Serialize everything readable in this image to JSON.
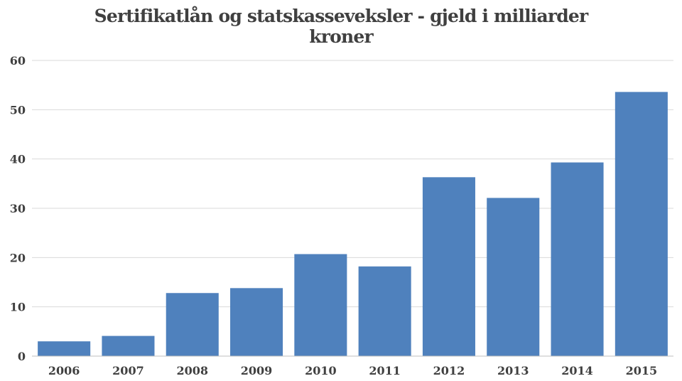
{
  "chart_data": {
    "type": "bar",
    "title_lines": [
      "Sertifikatlån og statskasseveksler - gjeld i milliarder",
      "kroner"
    ],
    "categories": [
      "2006",
      "2007",
      "2008",
      "2009",
      "2010",
      "2011",
      "2012",
      "2013",
      "2014",
      "2015"
    ],
    "values": [
      3.0,
      4.1,
      12.8,
      13.8,
      20.7,
      18.2,
      36.3,
      32.1,
      39.3,
      53.6
    ],
    "ylim": [
      0,
      60
    ],
    "yticks": [
      "0",
      "10",
      "20",
      "30",
      "40",
      "50",
      "60"
    ],
    "grid": true,
    "legend": "none",
    "bar_color": "#4f81bd"
  }
}
